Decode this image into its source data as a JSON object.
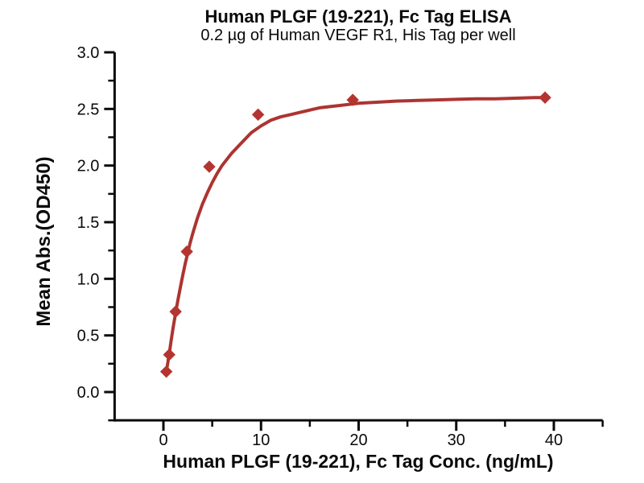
{
  "chart_data": {
    "type": "scatter",
    "title": "Human PLGF (19-221), Fc Tag ELISA",
    "subtitle": "0.2 µg of Human VEGF R1, His Tag per well",
    "xlabel": "Human PLGF (19-221), Fc Tag Conc. (ng/mL)",
    "ylabel": "Mean Abs.(OD450)",
    "x_scale": "linear",
    "xlim": [
      -5,
      45
    ],
    "ylim": [
      -0.25,
      3.0
    ],
    "grid": false,
    "legend": null,
    "axis_color": "#0a0a0a",
    "x_ticks": {
      "values": [
        0,
        10,
        20,
        30,
        40
      ],
      "labels": [
        "0",
        "10",
        "20",
        "30",
        "40"
      ],
      "minor": [
        5,
        15,
        25,
        35,
        45
      ]
    },
    "y_ticks": {
      "values": [
        0,
        0.5,
        1.0,
        1.5,
        2.0,
        2.5,
        3.0
      ],
      "labels": [
        "0.0",
        "0.5",
        "1.0",
        "1.5",
        "2.0",
        "2.5",
        "3.0"
      ],
      "minor": [
        -0.25,
        0.25,
        0.75,
        1.25,
        1.75,
        2.25,
        2.75
      ]
    },
    "series": [
      {
        "name": "Human PLGF (19-221), Fc Tag",
        "marker": "diamond",
        "marker_color": "#b43530",
        "x": [
          0.3,
          0.6,
          1.25,
          2.4,
          4.7,
          9.7,
          19.4,
          39.1
        ],
        "y": [
          0.18,
          0.33,
          0.71,
          1.24,
          1.99,
          2.45,
          2.58,
          2.6
        ]
      }
    ],
    "fit_curve": {
      "color": "#ac3431",
      "points": [
        [
          0.3,
          0.18
        ],
        [
          0.45,
          0.26
        ],
        [
          0.6,
          0.34
        ],
        [
          0.8,
          0.46
        ],
        [
          1.0,
          0.57
        ],
        [
          1.25,
          0.7
        ],
        [
          1.5,
          0.82
        ],
        [
          1.75,
          0.93
        ],
        [
          2.0,
          1.04
        ],
        [
          2.25,
          1.14
        ],
        [
          2.5,
          1.23
        ],
        [
          2.75,
          1.32
        ],
        [
          3.0,
          1.4
        ],
        [
          3.5,
          1.54
        ],
        [
          4.0,
          1.66
        ],
        [
          4.5,
          1.76
        ],
        [
          5.0,
          1.85
        ],
        [
          5.5,
          1.93
        ],
        [
          6.0,
          2.0
        ],
        [
          7.0,
          2.11
        ],
        [
          8.0,
          2.2
        ],
        [
          9.0,
          2.29
        ],
        [
          10,
          2.35
        ],
        [
          11,
          2.4
        ],
        [
          12,
          2.43
        ],
        [
          13,
          2.45
        ],
        [
          14,
          2.47
        ],
        [
          15,
          2.49
        ],
        [
          16,
          2.51
        ],
        [
          17,
          2.52
        ],
        [
          18,
          2.53
        ],
        [
          19,
          2.54
        ],
        [
          20,
          2.55
        ],
        [
          22,
          2.56
        ],
        [
          24,
          2.57
        ],
        [
          26,
          2.575
        ],
        [
          28,
          2.58
        ],
        [
          30,
          2.585
        ],
        [
          32,
          2.59
        ],
        [
          34,
          2.59
        ],
        [
          36,
          2.595
        ],
        [
          38,
          2.6
        ],
        [
          39.1,
          2.6
        ]
      ]
    }
  }
}
